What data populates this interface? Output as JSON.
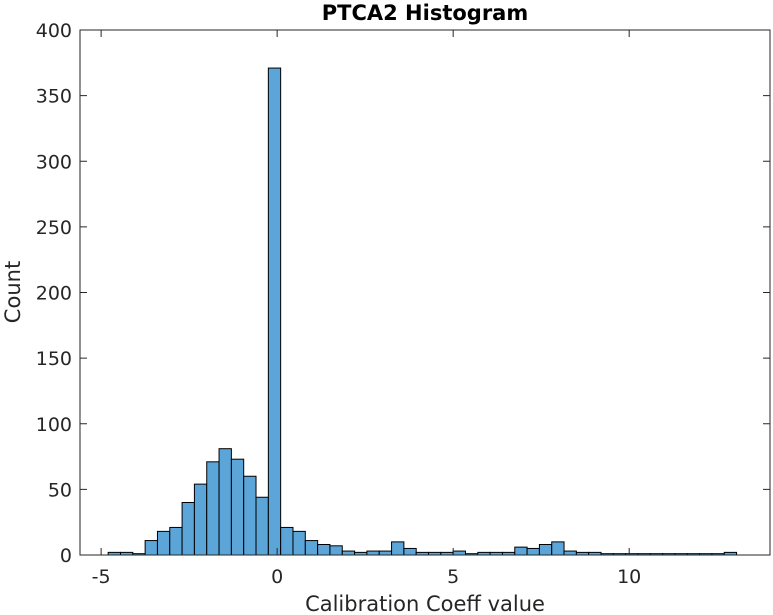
{
  "chart_data": {
    "type": "bar",
    "title": "PTCA2 Histogram",
    "xlabel": "Calibration Coeff value",
    "ylabel": "Count",
    "xlim": [
      -5.6,
      14
    ],
    "ylim": [
      0,
      400
    ],
    "xticks": [
      -5,
      0,
      5,
      10
    ],
    "xtick_labels": [
      "-5",
      "0",
      "5",
      "10"
    ],
    "yticks": [
      0,
      50,
      100,
      150,
      200,
      250,
      300,
      350,
      400
    ],
    "ytick_labels": [
      "0",
      "50",
      "100",
      "150",
      "200",
      "250",
      "300",
      "350",
      "400"
    ],
    "bin_width": 0.35,
    "bin_start": -4.8,
    "values": [
      2,
      2,
      1,
      11,
      18,
      21,
      40,
      54,
      71,
      81,
      73,
      60,
      44,
      371,
      21,
      18,
      11,
      8,
      7,
      3,
      2,
      3,
      3,
      10,
      5,
      2,
      2,
      2,
      3,
      1,
      2,
      2,
      2,
      6,
      5,
      8,
      10,
      3,
      2,
      2,
      1,
      1,
      1,
      1,
      1,
      1,
      1,
      1,
      1,
      1,
      2
    ],
    "bar_color": "#5ba5d9",
    "grid": false
  }
}
